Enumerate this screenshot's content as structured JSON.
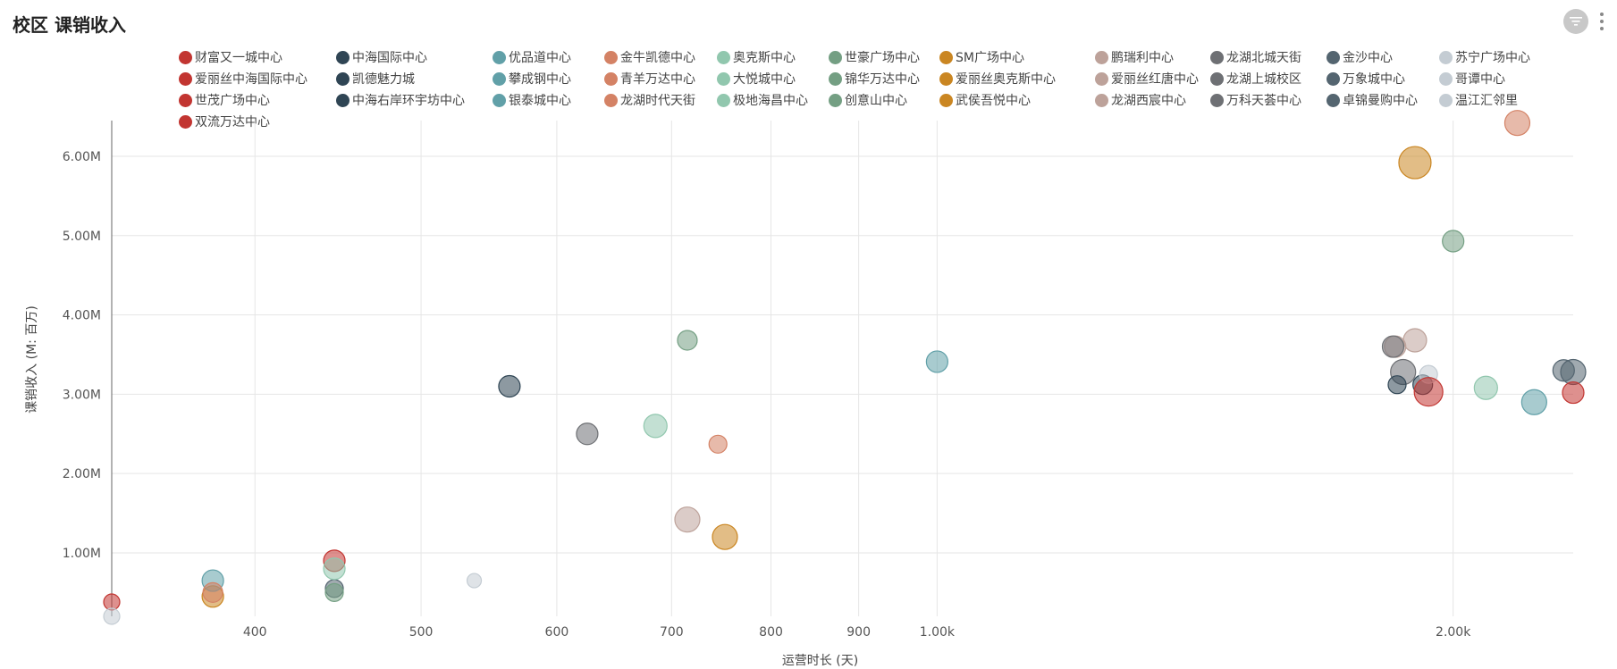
{
  "header": {
    "title": "校区 课销收入",
    "filter_icon": "filter-icon",
    "more_icon": "more-vertical-icon"
  },
  "chart_data": {
    "type": "scatter",
    "title": "校区 课销收入",
    "xlabel": "运营时长 (天)",
    "ylabel": "课销收入 (M: 百万)",
    "x_scale": "log",
    "xlim": [
      330,
      2350
    ],
    "ylim": [
      0.2,
      6.45
    ],
    "x_ticks": [
      400,
      500,
      600,
      700,
      800,
      900,
      1000,
      2000
    ],
    "x_tick_labels": [
      "400",
      "500",
      "600",
      "700",
      "800",
      "900",
      "1.00k",
      "2.00k"
    ],
    "y_ticks": [
      1,
      2,
      3,
      4,
      5,
      6
    ],
    "y_tick_labels": [
      "1.00M",
      "2.00M",
      "3.00M",
      "4.00M",
      "5.00M",
      "6.00M"
    ],
    "grid": true,
    "legend_position": "top",
    "series": [
      {
        "name": "财富又一城中心",
        "color": "#c23531",
        "points": [
          [
            330,
            0.38,
            9
          ]
        ]
      },
      {
        "name": "中海国际中心",
        "color": "#2f4554",
        "points": [
          [
            1920,
            3.12,
            11
          ]
        ]
      },
      {
        "name": "优品道中心",
        "color": "#61a0a8",
        "points": [
          [
            1000,
            3.41,
            12
          ]
        ]
      },
      {
        "name": "金牛凯德中心",
        "color": "#d48265",
        "points": [
          [
            745,
            2.37,
            10
          ]
        ]
      },
      {
        "name": "奥克斯中心",
        "color": "#91c7ae",
        "points": [
          [
            685,
            2.6,
            13
          ]
        ]
      },
      {
        "name": "世豪广场中心",
        "color": "#749f83",
        "points": [
          [
            715,
            3.68,
            11
          ]
        ]
      },
      {
        "name": "SM广场中心",
        "color": "#ca8622",
        "points": [
          [
            378,
            0.45,
            12
          ]
        ]
      },
      {
        "name": "鹏瑞利中心",
        "color": "#bda29a",
        "points": [
          [
            715,
            1.42,
            14
          ]
        ]
      },
      {
        "name": "龙湖北城天街",
        "color": "#6e7074",
        "points": [
          [
            625,
            2.5,
            12
          ]
        ]
      },
      {
        "name": "金沙中心",
        "color": "#546570",
        "points": [
          [
            2350,
            3.28,
            14
          ]
        ]
      },
      {
        "name": "苏宁广场中心",
        "color": "#c4ccd3",
        "points": [
          [
            1935,
            3.25,
            10
          ]
        ]
      },
      {
        "name": "爱丽丝中海国际中心",
        "color": "#c23531",
        "points": [
          [
            445,
            0.9,
            12
          ]
        ]
      },
      {
        "name": "凯德魅力城",
        "color": "#2f4554",
        "points": [
          [
            563,
            3.1,
            12
          ]
        ]
      },
      {
        "name": "攀成钢中心",
        "color": "#61a0a8",
        "points": [
          [
            378,
            0.65,
            12
          ]
        ]
      },
      {
        "name": "青羊万达中心",
        "color": "#d48265",
        "points": [
          [
            2180,
            6.42,
            14
          ]
        ]
      },
      {
        "name": "大悦城中心",
        "color": "#91c7ae",
        "points": [
          [
            2090,
            3.08,
            13
          ]
        ]
      },
      {
        "name": "锦华万达中心",
        "color": "#749f83",
        "points": [
          [
            2000,
            4.93,
            12
          ]
        ]
      },
      {
        "name": "爱丽丝奥克斯中心",
        "color": "#ca8622",
        "points": [
          [
            1900,
            5.92,
            18
          ]
        ]
      },
      {
        "name": "爱丽丝红唐中心",
        "color": "#bda29a",
        "points": [
          [
            1900,
            3.68,
            13
          ]
        ]
      },
      {
        "name": "龙湖上城校区",
        "color": "#6e7074",
        "points": [
          [
            1870,
            3.28,
            14
          ]
        ]
      },
      {
        "name": "万象城中心",
        "color": "#546570",
        "points": [
          [
            445,
            0.55,
            10
          ]
        ]
      },
      {
        "name": "哥谭中心",
        "color": "#c4ccd3",
        "points": [
          [
            330,
            0.2,
            9
          ]
        ]
      },
      {
        "name": "世茂广场中心",
        "color": "#c23531",
        "points": [
          [
            1935,
            3.03,
            16
          ]
        ]
      },
      {
        "name": "中海右岸环宇坊中心",
        "color": "#2f4554",
        "points": [
          [
            1855,
            3.12,
            10
          ]
        ]
      },
      {
        "name": "银泰城中心",
        "color": "#61a0a8",
        "points": [
          [
            2230,
            2.9,
            14
          ]
        ]
      },
      {
        "name": "龙湖时代天街",
        "color": "#d48265",
        "points": [
          [
            378,
            0.5,
            11
          ]
        ]
      },
      {
        "name": "极地海昌中心",
        "color": "#91c7ae",
        "points": [
          [
            445,
            0.8,
            12
          ]
        ]
      },
      {
        "name": "创意山中心",
        "color": "#749f83",
        "points": [
          [
            445,
            0.5,
            10
          ]
        ]
      },
      {
        "name": "武侯吾悦中心",
        "color": "#ca8622",
        "points": [
          [
            752,
            1.2,
            14
          ]
        ]
      },
      {
        "name": "龙湖西宸中心",
        "color": "#bda29a",
        "points": [
          [
            1850,
            3.6,
            12
          ]
        ]
      },
      {
        "name": "万科天荟中心",
        "color": "#6e7074",
        "points": [
          [
            1845,
            3.6,
            12
          ]
        ]
      },
      {
        "name": "卓锦曼购中心",
        "color": "#546570",
        "points": [
          [
            2320,
            3.3,
            12
          ]
        ]
      },
      {
        "name": "温江汇邻里",
        "color": "#c4ccd3",
        "points": [
          [
            537,
            0.65,
            8
          ]
        ]
      },
      {
        "name": "双流万达中心",
        "color": "#c23531",
        "points": [
          [
            2350,
            3.02,
            12
          ]
        ]
      }
    ]
  }
}
